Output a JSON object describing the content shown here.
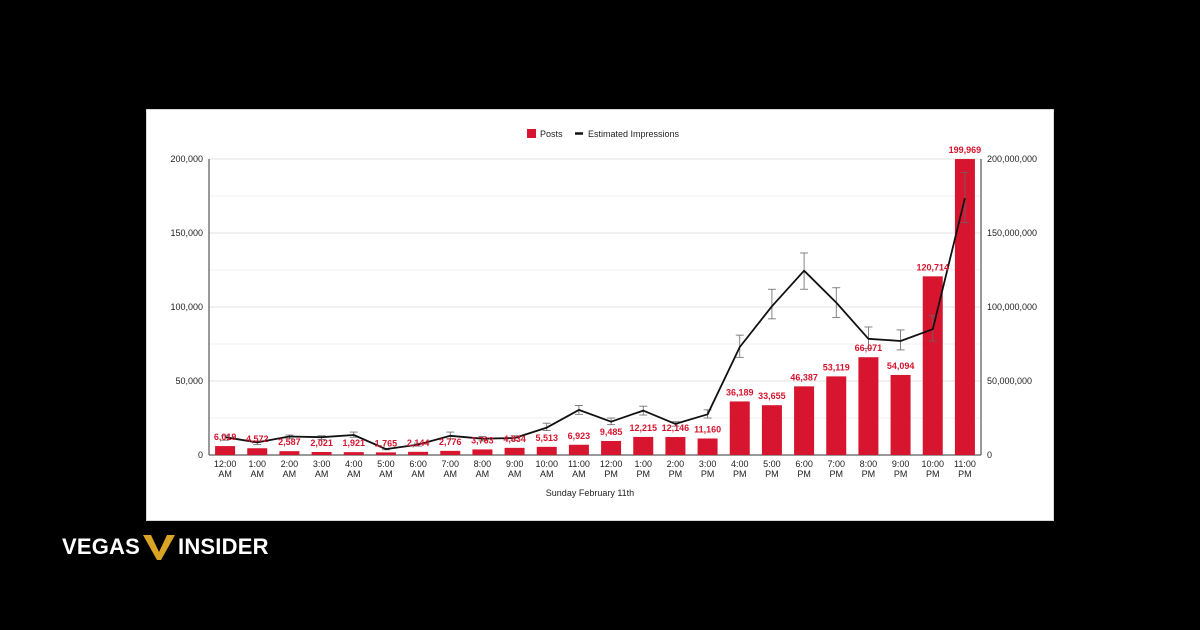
{
  "colors": {
    "bar": "#d7152f",
    "line": "#111111",
    "label": "#d7152f",
    "axis_text": "#222222",
    "grid": "#e3e3e3",
    "page_bg": "#000000",
    "logo_gold": "#d9a426"
  },
  "brand": {
    "left_word": "VEGAS",
    "right_word": "INSIDER",
    "logo_icon": "vi-chevron-logo-icon"
  },
  "chart_data": {
    "type": "bar",
    "xlabel": "Sunday February 11th",
    "legend": {
      "position": "top-center",
      "items": [
        {
          "name": "Posts",
          "marker": "square"
        },
        {
          "name": "Estimated Impressions",
          "marker": "line"
        }
      ]
    },
    "categories": [
      [
        "12:00",
        "AM"
      ],
      [
        "1:00",
        "AM"
      ],
      [
        "2:00",
        "AM"
      ],
      [
        "3:00",
        "AM"
      ],
      [
        "4:00",
        "AM"
      ],
      [
        "5:00",
        "AM"
      ],
      [
        "6:00",
        "AM"
      ],
      [
        "7:00",
        "AM"
      ],
      [
        "8:00",
        "AM"
      ],
      [
        "9:00",
        "AM"
      ],
      [
        "10:00",
        "AM"
      ],
      [
        "11:00",
        "AM"
      ],
      [
        "12:00",
        "PM"
      ],
      [
        "1:00",
        "PM"
      ],
      [
        "2:00",
        "PM"
      ],
      [
        "3:00",
        "PM"
      ],
      [
        "4:00",
        "PM"
      ],
      [
        "5:00",
        "PM"
      ],
      [
        "6:00",
        "PM"
      ],
      [
        "7:00",
        "PM"
      ],
      [
        "8:00",
        "PM"
      ],
      [
        "9:00",
        "PM"
      ],
      [
        "10:00",
        "PM"
      ],
      [
        "11:00",
        "PM"
      ]
    ],
    "series": [
      {
        "name": "Posts",
        "type": "bar",
        "axis": "left",
        "values": [
          6019,
          4572,
          2587,
          2021,
          1921,
          1765,
          2144,
          2776,
          3763,
          4834,
          5513,
          6923,
          9485,
          12215,
          12146,
          11160,
          36189,
          33655,
          46387,
          53119,
          66071,
          54094,
          120714,
          199969
        ],
        "labels": [
          "6,019",
          "4,572",
          "2,587",
          "2,021",
          "1,921",
          "1,765",
          "2,144",
          "2,776",
          "3,763",
          "4,834",
          "5,513",
          "6,923",
          "9,485",
          "12,215",
          "12,146",
          "11,160",
          "36,189",
          "33,655",
          "46,387",
          "53,119",
          "66,071",
          "54,094",
          "120,714",
          "199,969"
        ]
      },
      {
        "name": "Estimated Impressions",
        "type": "line",
        "axis": "right",
        "values": [
          12000000,
          8500000,
          12500000,
          12000000,
          13500000,
          4000000,
          7000000,
          13000000,
          11000000,
          11500000,
          18500000,
          30500000,
          22500000,
          30000000,
          21000000,
          27500000,
          73000000,
          100500000,
          124500000,
          103000000,
          78500000,
          77000000,
          85000000,
          173500000
        ],
        "error_low": [
          10000000,
          7000000,
          11000000,
          10500000,
          12000000,
          3500000,
          6000000,
          11000000,
          9500000,
          10000000,
          16500000,
          27500000,
          20500000,
          27000000,
          19500000,
          25000000,
          66000000,
          92000000,
          112000000,
          93000000,
          72000000,
          71000000,
          77000000,
          157000000
        ],
        "error_high": [
          13000000,
          9500000,
          13500000,
          13000000,
          15500000,
          4500000,
          8000000,
          15500000,
          12500000,
          13000000,
          21500000,
          33500000,
          25000000,
          33000000,
          22500000,
          30500000,
          81000000,
          112000000,
          136500000,
          113000000,
          86500000,
          84500000,
          94000000,
          191000000
        ]
      }
    ],
    "y_left": {
      "min": 0,
      "max": 200000,
      "ticks": [
        0,
        50000,
        100000,
        150000,
        200000
      ],
      "tick_labels": [
        "0",
        "50,000",
        "100,000",
        "150,000",
        "200,000"
      ]
    },
    "y_right": {
      "min": 0,
      "max": 200000000,
      "ticks": [
        0,
        50000000,
        100000000,
        150000000,
        200000000
      ],
      "tick_labels": [
        "0",
        "50,000,000",
        "100,000,000",
        "150,000,000",
        "200,000,000"
      ]
    },
    "grid": true
  }
}
